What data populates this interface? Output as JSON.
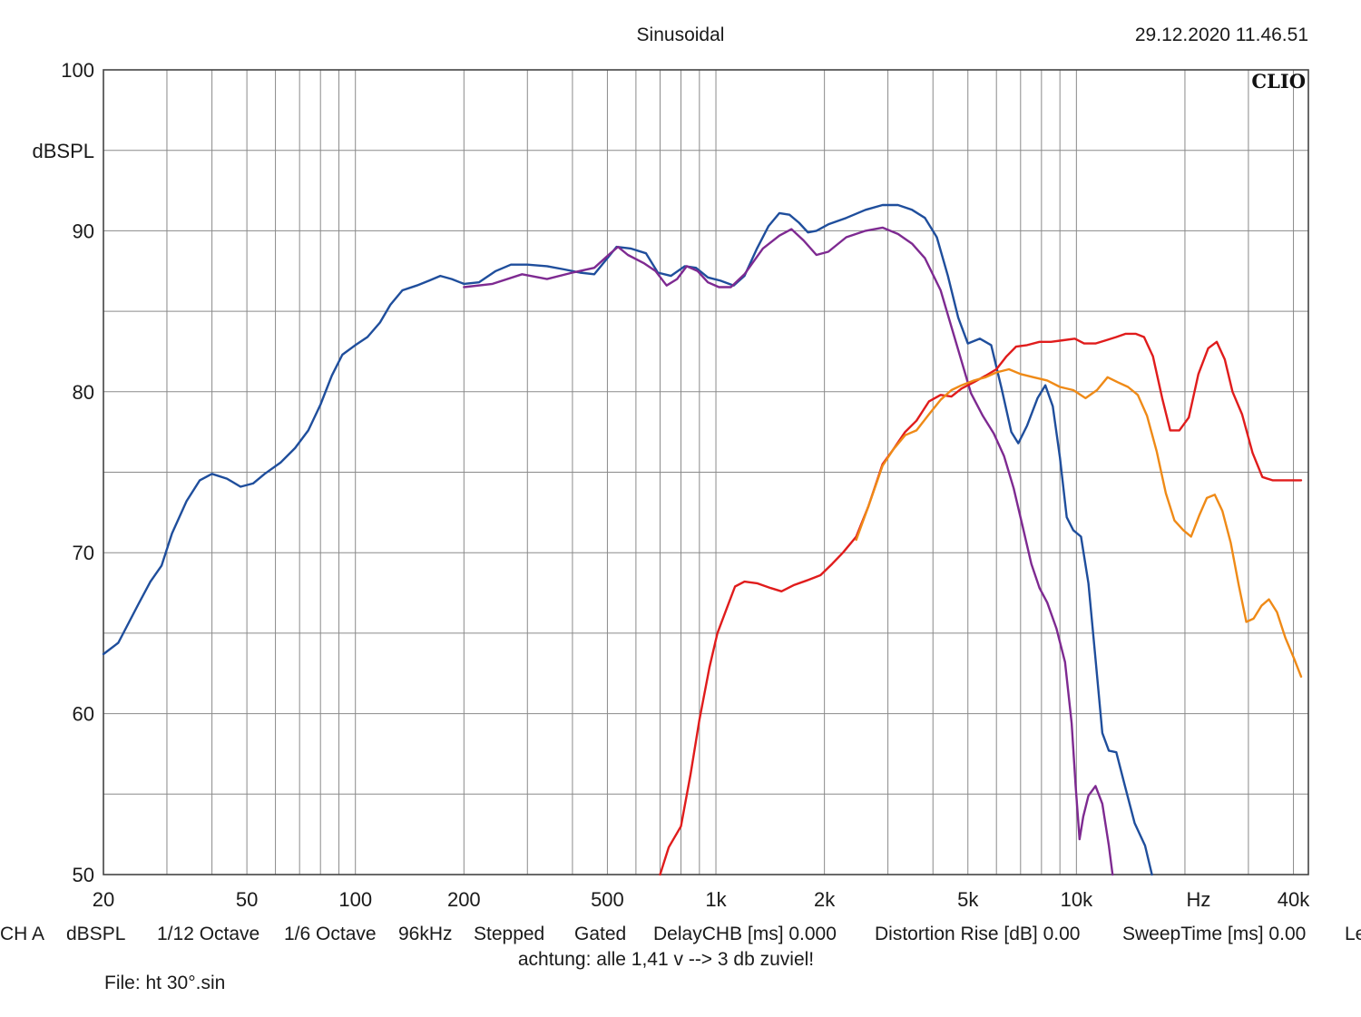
{
  "header": {
    "title": "Sinusoidal",
    "timestamp": "29.12.2020 11.46.51",
    "brand": "CLIO"
  },
  "info_bar": [
    "CH A",
    "dBSPL",
    "1/12 Octave",
    "1/6 Octave",
    "96kHz",
    "Stepped",
    "Gated",
    "DelayCHB [ms] 0.000",
    "Distortion Rise [dB] 0.00",
    "SweepTime [ms] 0.00",
    "Le"
  ],
  "note": "achtung: alle 1,41 v --> 3 db zuviel!",
  "file_label": "File: ht 30°.sin",
  "chart_data": {
    "type": "line",
    "title": "Sinusoidal",
    "xlabel": "Hz",
    "ylabel": "dBSPL",
    "x_scale": "log",
    "xlim": [
      20,
      44000
    ],
    "ylim": [
      50,
      100
    ],
    "grid": true,
    "x_ticks": [
      {
        "v": 20,
        "label": "20"
      },
      {
        "v": 50,
        "label": "50"
      },
      {
        "v": 100,
        "label": "100"
      },
      {
        "v": 200,
        "label": "200"
      },
      {
        "v": 500,
        "label": "500"
      },
      {
        "v": 1000,
        "label": "1k"
      },
      {
        "v": 2000,
        "label": "2k"
      },
      {
        "v": 5000,
        "label": "5k"
      },
      {
        "v": 10000,
        "label": "10k"
      },
      {
        "v": 40000,
        "label": "40k"
      }
    ],
    "y_ticks": [
      50,
      60,
      70,
      80,
      90,
      100
    ],
    "series": [
      {
        "color": "#1f4e9c",
        "points": [
          [
            20,
            63.7
          ],
          [
            22,
            64.4
          ],
          [
            25,
            66.8
          ],
          [
            27,
            68.2
          ],
          [
            29,
            69.2
          ],
          [
            31,
            71.2
          ],
          [
            34,
            73.2
          ],
          [
            37,
            74.5
          ],
          [
            40,
            74.9
          ],
          [
            44,
            74.6
          ],
          [
            48,
            74.1
          ],
          [
            52,
            74.3
          ],
          [
            56,
            74.9
          ],
          [
            62,
            75.6
          ],
          [
            68,
            76.5
          ],
          [
            74,
            77.6
          ],
          [
            80,
            79.2
          ],
          [
            86,
            81.0
          ],
          [
            92,
            82.3
          ],
          [
            100,
            82.9
          ],
          [
            108,
            83.4
          ],
          [
            117,
            84.3
          ],
          [
            125,
            85.4
          ],
          [
            135,
            86.3
          ],
          [
            148,
            86.6
          ],
          [
            160,
            86.9
          ],
          [
            172,
            87.2
          ],
          [
            185,
            87.0
          ],
          [
            200,
            86.7
          ],
          [
            220,
            86.8
          ],
          [
            245,
            87.5
          ],
          [
            270,
            87.9
          ],
          [
            300,
            87.9
          ],
          [
            340,
            87.8
          ],
          [
            380,
            87.6
          ],
          [
            420,
            87.4
          ],
          [
            460,
            87.3
          ],
          [
            500,
            88.3
          ],
          [
            530,
            89.0
          ],
          [
            580,
            88.9
          ],
          [
            640,
            88.6
          ],
          [
            690,
            87.4
          ],
          [
            750,
            87.2
          ],
          [
            820,
            87.8
          ],
          [
            880,
            87.7
          ],
          [
            950,
            87.1
          ],
          [
            1030,
            86.9
          ],
          [
            1120,
            86.6
          ],
          [
            1200,
            87.2
          ],
          [
            1300,
            88.9
          ],
          [
            1400,
            90.3
          ],
          [
            1500,
            91.1
          ],
          [
            1600,
            91.0
          ],
          [
            1700,
            90.5
          ],
          [
            1800,
            89.9
          ],
          [
            1900,
            90.0
          ],
          [
            2050,
            90.4
          ],
          [
            2300,
            90.8
          ],
          [
            2600,
            91.3
          ],
          [
            2900,
            91.6
          ],
          [
            3200,
            91.6
          ],
          [
            3500,
            91.3
          ],
          [
            3800,
            90.8
          ],
          [
            4100,
            89.6
          ],
          [
            4400,
            87.2
          ],
          [
            4700,
            84.6
          ],
          [
            5000,
            83.0
          ],
          [
            5400,
            83.3
          ],
          [
            5800,
            82.9
          ],
          [
            6200,
            80.2
          ],
          [
            6600,
            77.5
          ],
          [
            6900,
            76.8
          ],
          [
            7300,
            77.9
          ],
          [
            7800,
            79.6
          ],
          [
            8200,
            80.4
          ],
          [
            8600,
            79.1
          ],
          [
            9000,
            75.9
          ],
          [
            9400,
            72.2
          ],
          [
            9800,
            71.4
          ],
          [
            10300,
            71.0
          ],
          [
            10800,
            68.1
          ],
          [
            11300,
            63.4
          ],
          [
            11800,
            58.8
          ],
          [
            12300,
            57.7
          ],
          [
            12900,
            57.6
          ],
          [
            13600,
            55.6
          ],
          [
            14500,
            53.2
          ],
          [
            15500,
            51.8
          ],
          [
            16200,
            50.0
          ]
        ]
      },
      {
        "color": "#7e2a91",
        "points": [
          [
            200,
            86.5
          ],
          [
            240,
            86.7
          ],
          [
            290,
            87.3
          ],
          [
            340,
            87.0
          ],
          [
            400,
            87.4
          ],
          [
            460,
            87.7
          ],
          [
            510,
            88.6
          ],
          [
            535,
            89.0
          ],
          [
            570,
            88.5
          ],
          [
            630,
            88.0
          ],
          [
            680,
            87.5
          ],
          [
            730,
            86.6
          ],
          [
            780,
            87.0
          ],
          [
            830,
            87.8
          ],
          [
            890,
            87.5
          ],
          [
            950,
            86.8
          ],
          [
            1020,
            86.5
          ],
          [
            1100,
            86.5
          ],
          [
            1200,
            87.3
          ],
          [
            1350,
            88.9
          ],
          [
            1500,
            89.7
          ],
          [
            1620,
            90.1
          ],
          [
            1750,
            89.4
          ],
          [
            1900,
            88.5
          ],
          [
            2050,
            88.7
          ],
          [
            2300,
            89.6
          ],
          [
            2600,
            90.0
          ],
          [
            2900,
            90.2
          ],
          [
            3200,
            89.8
          ],
          [
            3500,
            89.2
          ],
          [
            3800,
            88.3
          ],
          [
            4200,
            86.3
          ],
          [
            4700,
            82.6
          ],
          [
            5100,
            79.9
          ],
          [
            5500,
            78.5
          ],
          [
            5900,
            77.4
          ],
          [
            6300,
            76.0
          ],
          [
            6700,
            74.0
          ],
          [
            7100,
            71.6
          ],
          [
            7500,
            69.3
          ],
          [
            7900,
            67.8
          ],
          [
            8300,
            66.9
          ],
          [
            8800,
            65.3
          ],
          [
            9300,
            63.2
          ],
          [
            9700,
            59.4
          ],
          [
            9950,
            55.5
          ],
          [
            10200,
            52.2
          ],
          [
            10450,
            53.6
          ],
          [
            10800,
            54.9
          ],
          [
            11300,
            55.5
          ],
          [
            11800,
            54.4
          ],
          [
            12300,
            51.8
          ],
          [
            12600,
            50.0
          ]
        ]
      },
      {
        "color": "#e01c1c",
        "points": [
          [
            700,
            50.0
          ],
          [
            740,
            51.7
          ],
          [
            800,
            53.0
          ],
          [
            850,
            56.2
          ],
          [
            900,
            59.6
          ],
          [
            960,
            62.9
          ],
          [
            1010,
            65.0
          ],
          [
            1070,
            66.5
          ],
          [
            1130,
            67.9
          ],
          [
            1200,
            68.2
          ],
          [
            1300,
            68.1
          ],
          [
            1420,
            67.8
          ],
          [
            1520,
            67.6
          ],
          [
            1650,
            68.0
          ],
          [
            1800,
            68.3
          ],
          [
            1950,
            68.6
          ],
          [
            2100,
            69.3
          ],
          [
            2250,
            70.0
          ],
          [
            2450,
            71.0
          ],
          [
            2650,
            72.9
          ],
          [
            2900,
            75.5
          ],
          [
            3100,
            76.4
          ],
          [
            3350,
            77.5
          ],
          [
            3600,
            78.2
          ],
          [
            3900,
            79.4
          ],
          [
            4200,
            79.8
          ],
          [
            4500,
            79.7
          ],
          [
            4800,
            80.2
          ],
          [
            5200,
            80.6
          ],
          [
            5600,
            81.0
          ],
          [
            6000,
            81.4
          ],
          [
            6400,
            82.2
          ],
          [
            6800,
            82.8
          ],
          [
            7300,
            82.9
          ],
          [
            7900,
            83.1
          ],
          [
            8500,
            83.1
          ],
          [
            9200,
            83.2
          ],
          [
            9900,
            83.3
          ],
          [
            10500,
            83.0
          ],
          [
            11300,
            83.0
          ],
          [
            12100,
            83.2
          ],
          [
            12900,
            83.4
          ],
          [
            13700,
            83.6
          ],
          [
            14600,
            83.6
          ],
          [
            15400,
            83.4
          ],
          [
            16300,
            82.2
          ],
          [
            17300,
            79.6
          ],
          [
            18200,
            77.6
          ],
          [
            19300,
            77.6
          ],
          [
            20500,
            78.4
          ],
          [
            21800,
            81.1
          ],
          [
            23200,
            82.7
          ],
          [
            24500,
            83.1
          ],
          [
            25800,
            82.0
          ],
          [
            27100,
            80.0
          ],
          [
            28800,
            78.6
          ],
          [
            30800,
            76.2
          ],
          [
            32800,
            74.7
          ],
          [
            35000,
            74.5
          ],
          [
            38000,
            74.5
          ],
          [
            42000,
            74.5
          ]
        ]
      },
      {
        "color": "#ef8a17",
        "points": [
          [
            2450,
            70.8
          ],
          [
            2650,
            72.9
          ],
          [
            2900,
            75.4
          ],
          [
            3100,
            76.4
          ],
          [
            3350,
            77.3
          ],
          [
            3600,
            77.6
          ],
          [
            3900,
            78.6
          ],
          [
            4200,
            79.5
          ],
          [
            4500,
            80.1
          ],
          [
            4800,
            80.4
          ],
          [
            5200,
            80.7
          ],
          [
            5600,
            80.9
          ],
          [
            6000,
            81.2
          ],
          [
            6500,
            81.4
          ],
          [
            7000,
            81.1
          ],
          [
            7600,
            80.9
          ],
          [
            8300,
            80.7
          ],
          [
            9000,
            80.3
          ],
          [
            9800,
            80.1
          ],
          [
            10600,
            79.6
          ],
          [
            11400,
            80.1
          ],
          [
            12200,
            80.9
          ],
          [
            13000,
            80.6
          ],
          [
            13900,
            80.3
          ],
          [
            14800,
            79.8
          ],
          [
            15700,
            78.5
          ],
          [
            16700,
            76.3
          ],
          [
            17700,
            73.7
          ],
          [
            18700,
            72.0
          ],
          [
            19800,
            71.4
          ],
          [
            20800,
            71.0
          ],
          [
            21900,
            72.3
          ],
          [
            23000,
            73.4
          ],
          [
            24200,
            73.6
          ],
          [
            25400,
            72.6
          ],
          [
            26800,
            70.6
          ],
          [
            28200,
            68.0
          ],
          [
            29600,
            65.7
          ],
          [
            31000,
            65.9
          ],
          [
            32600,
            66.7
          ],
          [
            34200,
            67.1
          ],
          [
            36000,
            66.3
          ],
          [
            38000,
            64.7
          ],
          [
            40200,
            63.4
          ],
          [
            42000,
            62.3
          ]
        ]
      }
    ]
  }
}
